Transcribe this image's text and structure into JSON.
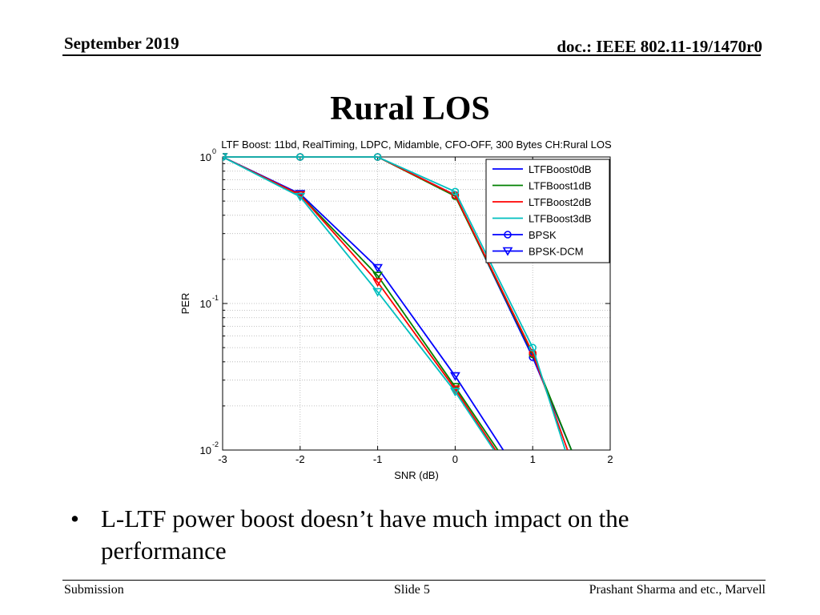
{
  "header": {
    "date": "September 2019",
    "doc": "doc.: IEEE 802.11-19/1470r0"
  },
  "slide": {
    "title": "Rural LOS",
    "bullet": "L-LTF power boost doesn’t have much impact on the performance"
  },
  "footer": {
    "left": "Submission",
    "center": "Slide 5",
    "right": "Prashant Sharma and etc., Marvell"
  },
  "chart_data": {
    "type": "line",
    "title": "LTF Boost: 11bd, RealTiming, LDPC, Midamble, CFO-OFF, 300 Bytes CH:Rural LOS",
    "xlabel": "SNR (dB)",
    "ylabel": "PER",
    "xlim": [
      -3,
      2
    ],
    "ylim": [
      0.01,
      1
    ],
    "yscale": "log",
    "x_ticks": [
      -3,
      -2,
      -1,
      0,
      1,
      2
    ],
    "y_ticks": [
      {
        "base": "10",
        "exp": "0",
        "value": 1
      },
      {
        "base": "10",
        "exp": "-1",
        "value": 0.1
      },
      {
        "base": "10",
        "exp": "-2",
        "value": 0.01
      }
    ],
    "grid": true,
    "legend_position": "top-right",
    "series": [
      {
        "name": "LTFBoost0dB",
        "color": "#0000ff",
        "group": "BPSK",
        "x": [
          -3,
          -2,
          -1,
          0,
          1,
          1.5
        ],
        "y": [
          1,
          1,
          1,
          0.55,
          0.043,
          0.01
        ]
      },
      {
        "name": "LTFBoost1dB",
        "color": "#008000",
        "group": "BPSK",
        "x": [
          -3,
          -2,
          -1,
          0,
          1,
          1.5
        ],
        "y": [
          1,
          1,
          1,
          0.54,
          0.045,
          0.01
        ]
      },
      {
        "name": "LTFBoost2dB",
        "color": "#ff0000",
        "group": "BPSK",
        "x": [
          -3,
          -2,
          -1,
          0,
          1,
          1.45
        ],
        "y": [
          1,
          1,
          1,
          0.55,
          0.046,
          0.01
        ]
      },
      {
        "name": "LTFBoost3dB",
        "color": "#00bfbf",
        "group": "BPSK",
        "x": [
          -3,
          -2,
          -1,
          0,
          1,
          1.42
        ],
        "y": [
          1,
          1,
          1,
          0.58,
          0.05,
          0.01
        ]
      },
      {
        "name": "LTFBoost0dB",
        "color": "#0000ff",
        "group": "BPSK-DCM",
        "x": [
          -3,
          -2,
          -1,
          0,
          0.62
        ],
        "y": [
          1,
          0.56,
          0.175,
          0.032,
          0.01
        ]
      },
      {
        "name": "LTFBoost1dB",
        "color": "#008000",
        "group": "BPSK-DCM",
        "x": [
          -3,
          -2,
          -1,
          0,
          0.55
        ],
        "y": [
          1,
          0.55,
          0.155,
          0.027,
          0.01
        ]
      },
      {
        "name": "LTFBoost2dB",
        "color": "#ff0000",
        "group": "BPSK-DCM",
        "x": [
          -3,
          -2,
          -1,
          0,
          0.52
        ],
        "y": [
          1,
          0.55,
          0.14,
          0.026,
          0.01
        ]
      },
      {
        "name": "LTFBoost3dB",
        "color": "#00bfbf",
        "group": "BPSK-DCM",
        "x": [
          -3,
          -2,
          -1,
          0,
          0.5
        ],
        "y": [
          1,
          0.535,
          0.12,
          0.025,
          0.01
        ]
      }
    ],
    "legend": [
      {
        "label": "LTFBoost0dB",
        "color": "#0000ff",
        "marker": "none"
      },
      {
        "label": "LTFBoost1dB",
        "color": "#008000",
        "marker": "none"
      },
      {
        "label": "LTFBoost2dB",
        "color": "#ff0000",
        "marker": "none"
      },
      {
        "label": "LTFBoost3dB",
        "color": "#00bfbf",
        "marker": "none"
      },
      {
        "label": "BPSK",
        "color": "#0000ff",
        "marker": "circle"
      },
      {
        "label": "BPSK-DCM",
        "color": "#0000ff",
        "marker": "triangle-down"
      }
    ]
  }
}
